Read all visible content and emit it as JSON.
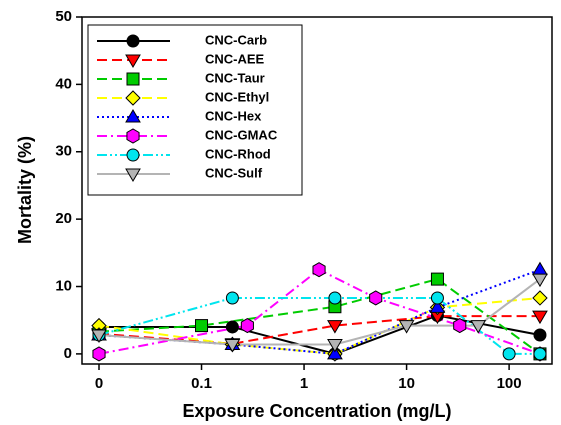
{
  "chart_data": {
    "type": "line",
    "xlabel": "Exposure Concentration (mg/L)",
    "ylabel": "Mortality (%)",
    "xscale": "log",
    "xlim": [
      0,
      262
    ],
    "xticks": [
      0,
      0.1,
      1,
      10,
      100
    ],
    "ylim": [
      -1.5,
      50
    ],
    "yticks": [
      0,
      10,
      20,
      30,
      40,
      50
    ],
    "legend": "upper left",
    "series": [
      {
        "name": "CNC-Carb",
        "color": "#000000",
        "marker": "circle",
        "linestyle": "solid",
        "x": [
          0,
          0.2,
          2,
          20,
          200
        ],
        "values": [
          4.0,
          4.0,
          0,
          5.7,
          2.8
        ]
      },
      {
        "name": "CNC-AEE",
        "color": "#ff0000",
        "marker": "triangle-down",
        "linestyle": "dashed",
        "x": [
          0,
          0.2,
          2,
          20,
          200
        ],
        "values": [
          3.0,
          1.5,
          4.2,
          5.6,
          5.6
        ]
      },
      {
        "name": "CNC-Taur",
        "color": "#00cc00",
        "marker": "square",
        "linestyle": "dashed",
        "x": [
          0,
          0.1,
          2,
          20,
          200
        ],
        "values": [
          3.3,
          4.2,
          7.0,
          11.1,
          0
        ]
      },
      {
        "name": "CNC-Ethyl",
        "color": "#ffff00",
        "marker": "diamond",
        "linestyle": "dashed",
        "x": [
          0,
          0.2,
          2,
          20,
          200
        ],
        "values": [
          4.2,
          1.4,
          0,
          6.9,
          8.3
        ]
      },
      {
        "name": "CNC-Hex",
        "color": "#0000ff",
        "marker": "triangle-up",
        "linestyle": "dotted",
        "x": [
          0,
          0.2,
          2,
          20,
          200
        ],
        "values": [
          2.8,
          1.4,
          0,
          6.9,
          12.5
        ]
      },
      {
        "name": "CNC-GMAC",
        "color": "#ff00ff",
        "marker": "hexagon",
        "linestyle": "dashdot",
        "x": [
          0,
          0.28,
          1.4,
          5,
          33,
          200
        ],
        "values": [
          0,
          4.2,
          12.5,
          8.3,
          4.2,
          0
        ]
      },
      {
        "name": "CNC-Rhod",
        "color": "#00e5ee",
        "marker": "circle",
        "linestyle": "dashdotdot",
        "x": [
          0,
          0.2,
          2,
          20,
          100,
          200
        ],
        "values": [
          2.8,
          8.3,
          8.3,
          8.3,
          0,
          0
        ]
      },
      {
        "name": "CNC-Sulf",
        "color": "#b4b4b4",
        "marker": "triangle-down",
        "linestyle": "solid",
        "x": [
          0,
          0.2,
          2,
          10,
          50,
          200
        ],
        "values": [
          2.8,
          1.4,
          1.4,
          4.2,
          4.2,
          11.1
        ]
      }
    ]
  }
}
